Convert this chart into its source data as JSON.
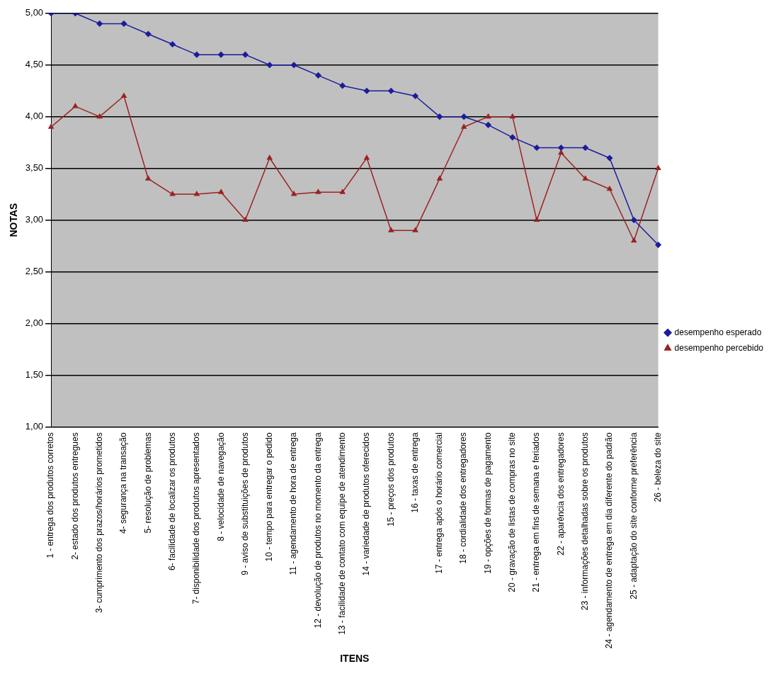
{
  "chart_data": {
    "type": "line",
    "xlabel": "ITENS",
    "ylabel": "NOTAS",
    "categories": [
      "1 - entrega dos produtos corretos",
      "2- estado dos produtos entregues",
      "3- cumprimento dos prazos/horários prometidos",
      "4- segurança na transação",
      "5- resolução de problemas",
      "6- facilidade de localizar os produtos",
      "7- disponibilidade dos produtos apresentados",
      "8 - velocidade de navegação",
      "9 - aviso de substituições de produtos",
      "10 - tempo para entregar o pedido",
      "11 - agendamento de hora de entrega",
      "12 - devolução de produtos no momento da entrega",
      "13 - facilidade de contato com equipe de atendimento",
      "14 - variedade de produtos oferecidos",
      "15 - preços dos produtos",
      "16 - taxas de entrega",
      "17 - entrega após o horário comercial",
      "18 - cordialidade dos entregadores",
      "19 - opções de formas de pagamento",
      "20 - gravação de listas de compras no site",
      "21 - entrega em fins de semana e feriados",
      "22 - aparência dos entregadores",
      "23 - informações detalhadas sobre os produtos",
      "24 - agendamento de entrega em dia diferente do padrão",
      "25 - adaptação do site conforme preferência",
      "26 - beleza do site"
    ],
    "series": [
      {
        "name": "desempenho esperado",
        "color": "#1c1c9c",
        "marker": "diamond",
        "values": [
          5.0,
          5.0,
          4.9,
          4.9,
          4.8,
          4.7,
          4.6,
          4.6,
          4.6,
          4.5,
          4.5,
          4.4,
          4.3,
          4.25,
          4.25,
          4.2,
          4.0,
          4.0,
          3.92,
          3.8,
          3.7,
          3.7,
          3.7,
          3.6,
          3.0,
          2.76
        ]
      },
      {
        "name": "desempenho percebido",
        "color": "#9c2222",
        "marker": "triangle",
        "values": [
          3.9,
          4.1,
          4.0,
          4.2,
          3.4,
          3.25,
          3.25,
          3.27,
          3.0,
          3.6,
          3.25,
          3.27,
          3.27,
          3.6,
          2.9,
          2.9,
          3.4,
          3.9,
          4.0,
          4.0,
          3.0,
          3.65,
          3.4,
          3.3,
          2.8,
          3.5
        ]
      }
    ],
    "ylim": [
      1,
      5
    ],
    "yticks": [
      {
        "value": 1,
        "label": "1,00"
      },
      {
        "value": 1.5,
        "label": "1,50"
      },
      {
        "value": 2,
        "label": "2,00"
      },
      {
        "value": 2.5,
        "label": "2,50"
      },
      {
        "value": 3,
        "label": "3,00"
      },
      {
        "value": 3.5,
        "label": "3,50"
      },
      {
        "value": 4,
        "label": "4,00"
      },
      {
        "value": 4.5,
        "label": "4,50"
      },
      {
        "value": 5,
        "label": "5,00"
      }
    ],
    "grid": "y",
    "legend": "right",
    "line_style": "solid"
  }
}
